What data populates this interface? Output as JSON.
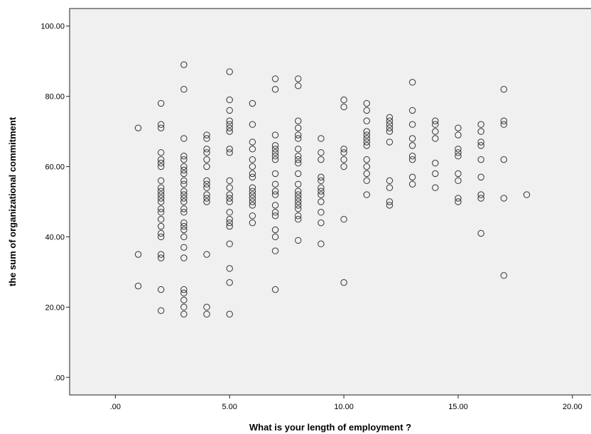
{
  "chart_data": {
    "type": "scatter",
    "title": "",
    "xlabel": "What is your length of employment ?",
    "ylabel": "the sum of organizational commitment",
    "xlim": [
      -2,
      21
    ],
    "ylim": [
      -5,
      105
    ],
    "x_ticks": [
      ".00",
      "5.00",
      "10.00",
      "15.00",
      "20.00"
    ],
    "y_ticks": [
      ".00",
      "20.00",
      "40.00",
      "60.00",
      "80.00",
      "100.00"
    ],
    "x_tick_values": [
      0,
      5,
      10,
      15,
      20
    ],
    "y_tick_values": [
      0,
      20,
      40,
      60,
      80,
      100
    ],
    "grid": false,
    "plot_background": "#f0f0f0",
    "marker_color": "#333333",
    "points": [
      [
        1,
        71
      ],
      [
        1,
        35
      ],
      [
        1,
        26
      ],
      [
        2,
        78
      ],
      [
        2,
        72
      ],
      [
        2,
        71
      ],
      [
        2,
        64
      ],
      [
        2,
        62
      ],
      [
        2,
        61
      ],
      [
        2,
        60
      ],
      [
        2,
        56
      ],
      [
        2,
        54
      ],
      [
        2,
        53
      ],
      [
        2,
        52
      ],
      [
        2,
        51
      ],
      [
        2,
        50
      ],
      [
        2,
        48
      ],
      [
        2,
        47
      ],
      [
        2,
        45
      ],
      [
        2,
        43
      ],
      [
        2,
        41
      ],
      [
        2,
        40
      ],
      [
        2,
        35
      ],
      [
        2,
        34
      ],
      [
        2,
        25
      ],
      [
        2,
        19
      ],
      [
        3,
        89
      ],
      [
        3,
        82
      ],
      [
        3,
        68
      ],
      [
        3,
        63
      ],
      [
        3,
        62
      ],
      [
        3,
        60
      ],
      [
        3,
        59
      ],
      [
        3,
        58
      ],
      [
        3,
        56
      ],
      [
        3,
        55
      ],
      [
        3,
        53
      ],
      [
        3,
        52
      ],
      [
        3,
        51
      ],
      [
        3,
        50
      ],
      [
        3,
        48
      ],
      [
        3,
        47
      ],
      [
        3,
        44
      ],
      [
        3,
        43
      ],
      [
        3,
        42
      ],
      [
        3,
        40
      ],
      [
        3,
        37
      ],
      [
        3,
        34
      ],
      [
        3,
        25
      ],
      [
        3,
        24
      ],
      [
        3,
        22
      ],
      [
        3,
        20
      ],
      [
        3,
        18
      ],
      [
        4,
        69
      ],
      [
        4,
        68
      ],
      [
        4,
        65
      ],
      [
        4,
        64
      ],
      [
        4,
        62
      ],
      [
        4,
        60
      ],
      [
        4,
        56
      ],
      [
        4,
        55
      ],
      [
        4,
        54
      ],
      [
        4,
        52
      ],
      [
        4,
        51
      ],
      [
        4,
        50
      ],
      [
        4,
        35
      ],
      [
        4,
        20
      ],
      [
        4,
        18
      ],
      [
        5,
        87
      ],
      [
        5,
        79
      ],
      [
        5,
        76
      ],
      [
        5,
        73
      ],
      [
        5,
        72
      ],
      [
        5,
        71
      ],
      [
        5,
        70
      ],
      [
        5,
        65
      ],
      [
        5,
        64
      ],
      [
        5,
        56
      ],
      [
        5,
        54
      ],
      [
        5,
        52
      ],
      [
        5,
        51
      ],
      [
        5,
        50
      ],
      [
        5,
        47
      ],
      [
        5,
        45
      ],
      [
        5,
        44
      ],
      [
        5,
        43
      ],
      [
        5,
        38
      ],
      [
        5,
        31
      ],
      [
        5,
        27
      ],
      [
        5,
        18
      ],
      [
        6,
        78
      ],
      [
        6,
        72
      ],
      [
        6,
        67
      ],
      [
        6,
        65
      ],
      [
        6,
        62
      ],
      [
        6,
        60
      ],
      [
        6,
        58
      ],
      [
        6,
        57
      ],
      [
        6,
        54
      ],
      [
        6,
        53
      ],
      [
        6,
        52
      ],
      [
        6,
        51
      ],
      [
        6,
        50
      ],
      [
        6,
        49
      ],
      [
        6,
        46
      ],
      [
        6,
        44
      ],
      [
        7,
        85
      ],
      [
        7,
        82
      ],
      [
        7,
        69
      ],
      [
        7,
        66
      ],
      [
        7,
        65
      ],
      [
        7,
        64
      ],
      [
        7,
        63
      ],
      [
        7,
        62
      ],
      [
        7,
        58
      ],
      [
        7,
        55
      ],
      [
        7,
        53
      ],
      [
        7,
        52
      ],
      [
        7,
        49
      ],
      [
        7,
        47
      ],
      [
        7,
        46
      ],
      [
        7,
        42
      ],
      [
        7,
        40
      ],
      [
        7,
        36
      ],
      [
        7,
        25
      ],
      [
        8,
        85
      ],
      [
        8,
        83
      ],
      [
        8,
        73
      ],
      [
        8,
        71
      ],
      [
        8,
        69
      ],
      [
        8,
        68
      ],
      [
        8,
        65
      ],
      [
        8,
        63
      ],
      [
        8,
        62
      ],
      [
        8,
        61
      ],
      [
        8,
        58
      ],
      [
        8,
        55
      ],
      [
        8,
        53
      ],
      [
        8,
        52
      ],
      [
        8,
        51
      ],
      [
        8,
        50
      ],
      [
        8,
        49
      ],
      [
        8,
        48
      ],
      [
        8,
        46
      ],
      [
        8,
        45
      ],
      [
        8,
        39
      ],
      [
        9,
        68
      ],
      [
        9,
        64
      ],
      [
        9,
        62
      ],
      [
        9,
        57
      ],
      [
        9,
        56
      ],
      [
        9,
        54
      ],
      [
        9,
        53
      ],
      [
        9,
        52
      ],
      [
        9,
        50
      ],
      [
        9,
        47
      ],
      [
        9,
        44
      ],
      [
        9,
        38
      ],
      [
        10,
        79
      ],
      [
        10,
        77
      ],
      [
        10,
        65
      ],
      [
        10,
        64
      ],
      [
        10,
        62
      ],
      [
        10,
        60
      ],
      [
        10,
        45
      ],
      [
        10,
        27
      ],
      [
        11,
        78
      ],
      [
        11,
        76
      ],
      [
        11,
        73
      ],
      [
        11,
        70
      ],
      [
        11,
        69
      ],
      [
        11,
        68
      ],
      [
        11,
        67
      ],
      [
        11,
        66
      ],
      [
        11,
        62
      ],
      [
        11,
        60
      ],
      [
        11,
        58
      ],
      [
        11,
        56
      ],
      [
        11,
        52
      ],
      [
        12,
        74
      ],
      [
        12,
        73
      ],
      [
        12,
        72
      ],
      [
        12,
        71
      ],
      [
        12,
        70
      ],
      [
        12,
        67
      ],
      [
        12,
        56
      ],
      [
        12,
        54
      ],
      [
        12,
        50
      ],
      [
        12,
        49
      ],
      [
        13,
        84
      ],
      [
        13,
        76
      ],
      [
        13,
        72
      ],
      [
        13,
        68
      ],
      [
        13,
        66
      ],
      [
        13,
        63
      ],
      [
        13,
        62
      ],
      [
        13,
        57
      ],
      [
        13,
        55
      ],
      [
        14,
        73
      ],
      [
        14,
        72
      ],
      [
        14,
        70
      ],
      [
        14,
        68
      ],
      [
        14,
        61
      ],
      [
        14,
        58
      ],
      [
        14,
        54
      ],
      [
        15,
        71
      ],
      [
        15,
        69
      ],
      [
        15,
        65
      ],
      [
        15,
        64
      ],
      [
        15,
        63
      ],
      [
        15,
        58
      ],
      [
        15,
        56
      ],
      [
        15,
        51
      ],
      [
        15,
        50
      ],
      [
        16,
        72
      ],
      [
        16,
        70
      ],
      [
        16,
        67
      ],
      [
        16,
        66
      ],
      [
        16,
        62
      ],
      [
        16,
        57
      ],
      [
        16,
        52
      ],
      [
        16,
        51
      ],
      [
        16,
        41
      ],
      [
        17,
        82
      ],
      [
        17,
        73
      ],
      [
        17,
        72
      ],
      [
        17,
        62
      ],
      [
        17,
        51
      ],
      [
        17,
        29
      ],
      [
        18,
        52
      ]
    ]
  }
}
